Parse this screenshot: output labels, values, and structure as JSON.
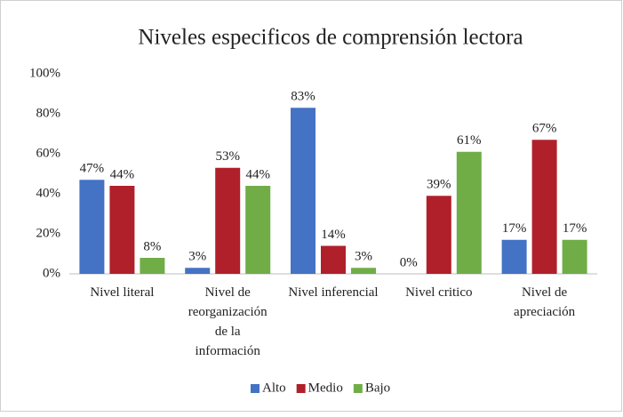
{
  "chart_data": {
    "type": "bar",
    "title": "Niveles especificos  de comprensión  lectora",
    "categories": [
      "Nivel literal",
      "Nivel de\nreorganización\nde la\ninformación",
      "Nivel inferencial",
      "Nivel critico",
      "Nivel de\napreciación"
    ],
    "series": [
      {
        "name": "Alto",
        "color": "#4472c4",
        "values": [
          47,
          3,
          83,
          0,
          17
        ],
        "value_labels": [
          "47%",
          "3%",
          "83%",
          "0%",
          "17%"
        ]
      },
      {
        "name": "Medio",
        "color": "#b0202a",
        "values": [
          44,
          53,
          14,
          39,
          67
        ],
        "value_labels": [
          "44%",
          "53%",
          "14%",
          "39%",
          "67%"
        ]
      },
      {
        "name": "Bajo",
        "color": "#70ad47",
        "values": [
          8,
          44,
          3,
          61,
          17
        ],
        "value_labels": [
          "8%",
          "44%",
          "3%",
          "61%",
          "17%"
        ]
      }
    ],
    "ylim": [
      0,
      100
    ],
    "yticks": [
      {
        "value": 0,
        "label": "0%"
      },
      {
        "value": 20,
        "label": "20%"
      },
      {
        "value": 40,
        "label": "40%"
      },
      {
        "value": 60,
        "label": "60%"
      },
      {
        "value": 80,
        "label": "80%"
      },
      {
        "value": 100,
        "label": "100%"
      }
    ],
    "grid": false,
    "legend": "bottom"
  }
}
